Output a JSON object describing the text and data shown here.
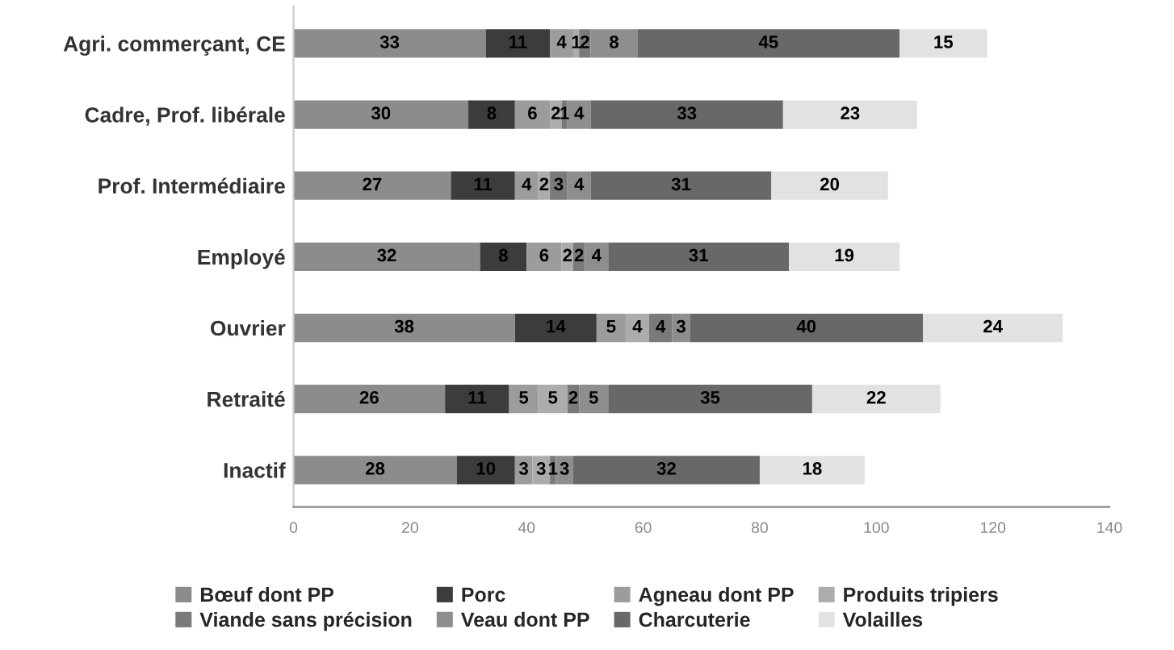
{
  "chart_data": {
    "type": "bar",
    "orientation": "horizontal",
    "stacked": true,
    "data_labels": true,
    "grid": false,
    "legend": "bottom",
    "categories": [
      "Agri. commerçant, CE",
      "Cadre, Prof. libérale",
      "Prof. Intermédiaire",
      "Employé",
      "Ouvrier",
      "Retraité",
      "Inactif"
    ],
    "xlim": [
      0,
      140
    ],
    "xticks": [
      0,
      20,
      40,
      60,
      80,
      100,
      120,
      140
    ],
    "series": [
      {
        "name": "Bœuf dont PP",
        "color": "#8c8c8c",
        "values": [
          33,
          30,
          27,
          32,
          38,
          26,
          28
        ]
      },
      {
        "name": "Porc",
        "color": "#3c3c3c",
        "values": [
          11,
          8,
          11,
          8,
          14,
          11,
          10
        ]
      },
      {
        "name": "Agneau dont PP",
        "color": "#9c9c9c",
        "values": [
          4,
          6,
          4,
          6,
          5,
          5,
          3
        ]
      },
      {
        "name": "Produits tripiers",
        "color": "#acacac",
        "values": [
          1,
          2,
          2,
          2,
          4,
          5,
          3
        ]
      },
      {
        "name": "Viande sans précision",
        "color": "#7a7a7a",
        "values": [
          2,
          1,
          3,
          2,
          4,
          2,
          1
        ]
      },
      {
        "name": "Veau dont PP",
        "color": "#8e8e8e",
        "values": [
          8,
          4,
          4,
          4,
          3,
          5,
          3
        ]
      },
      {
        "name": "Charcuterie",
        "color": "#686868",
        "values": [
          45,
          33,
          31,
          31,
          40,
          35,
          32
        ]
      },
      {
        "name": "Volailles",
        "color": "#e2e2e2",
        "values": [
          15,
          23,
          20,
          19,
          24,
          22,
          18
        ]
      }
    ]
  }
}
